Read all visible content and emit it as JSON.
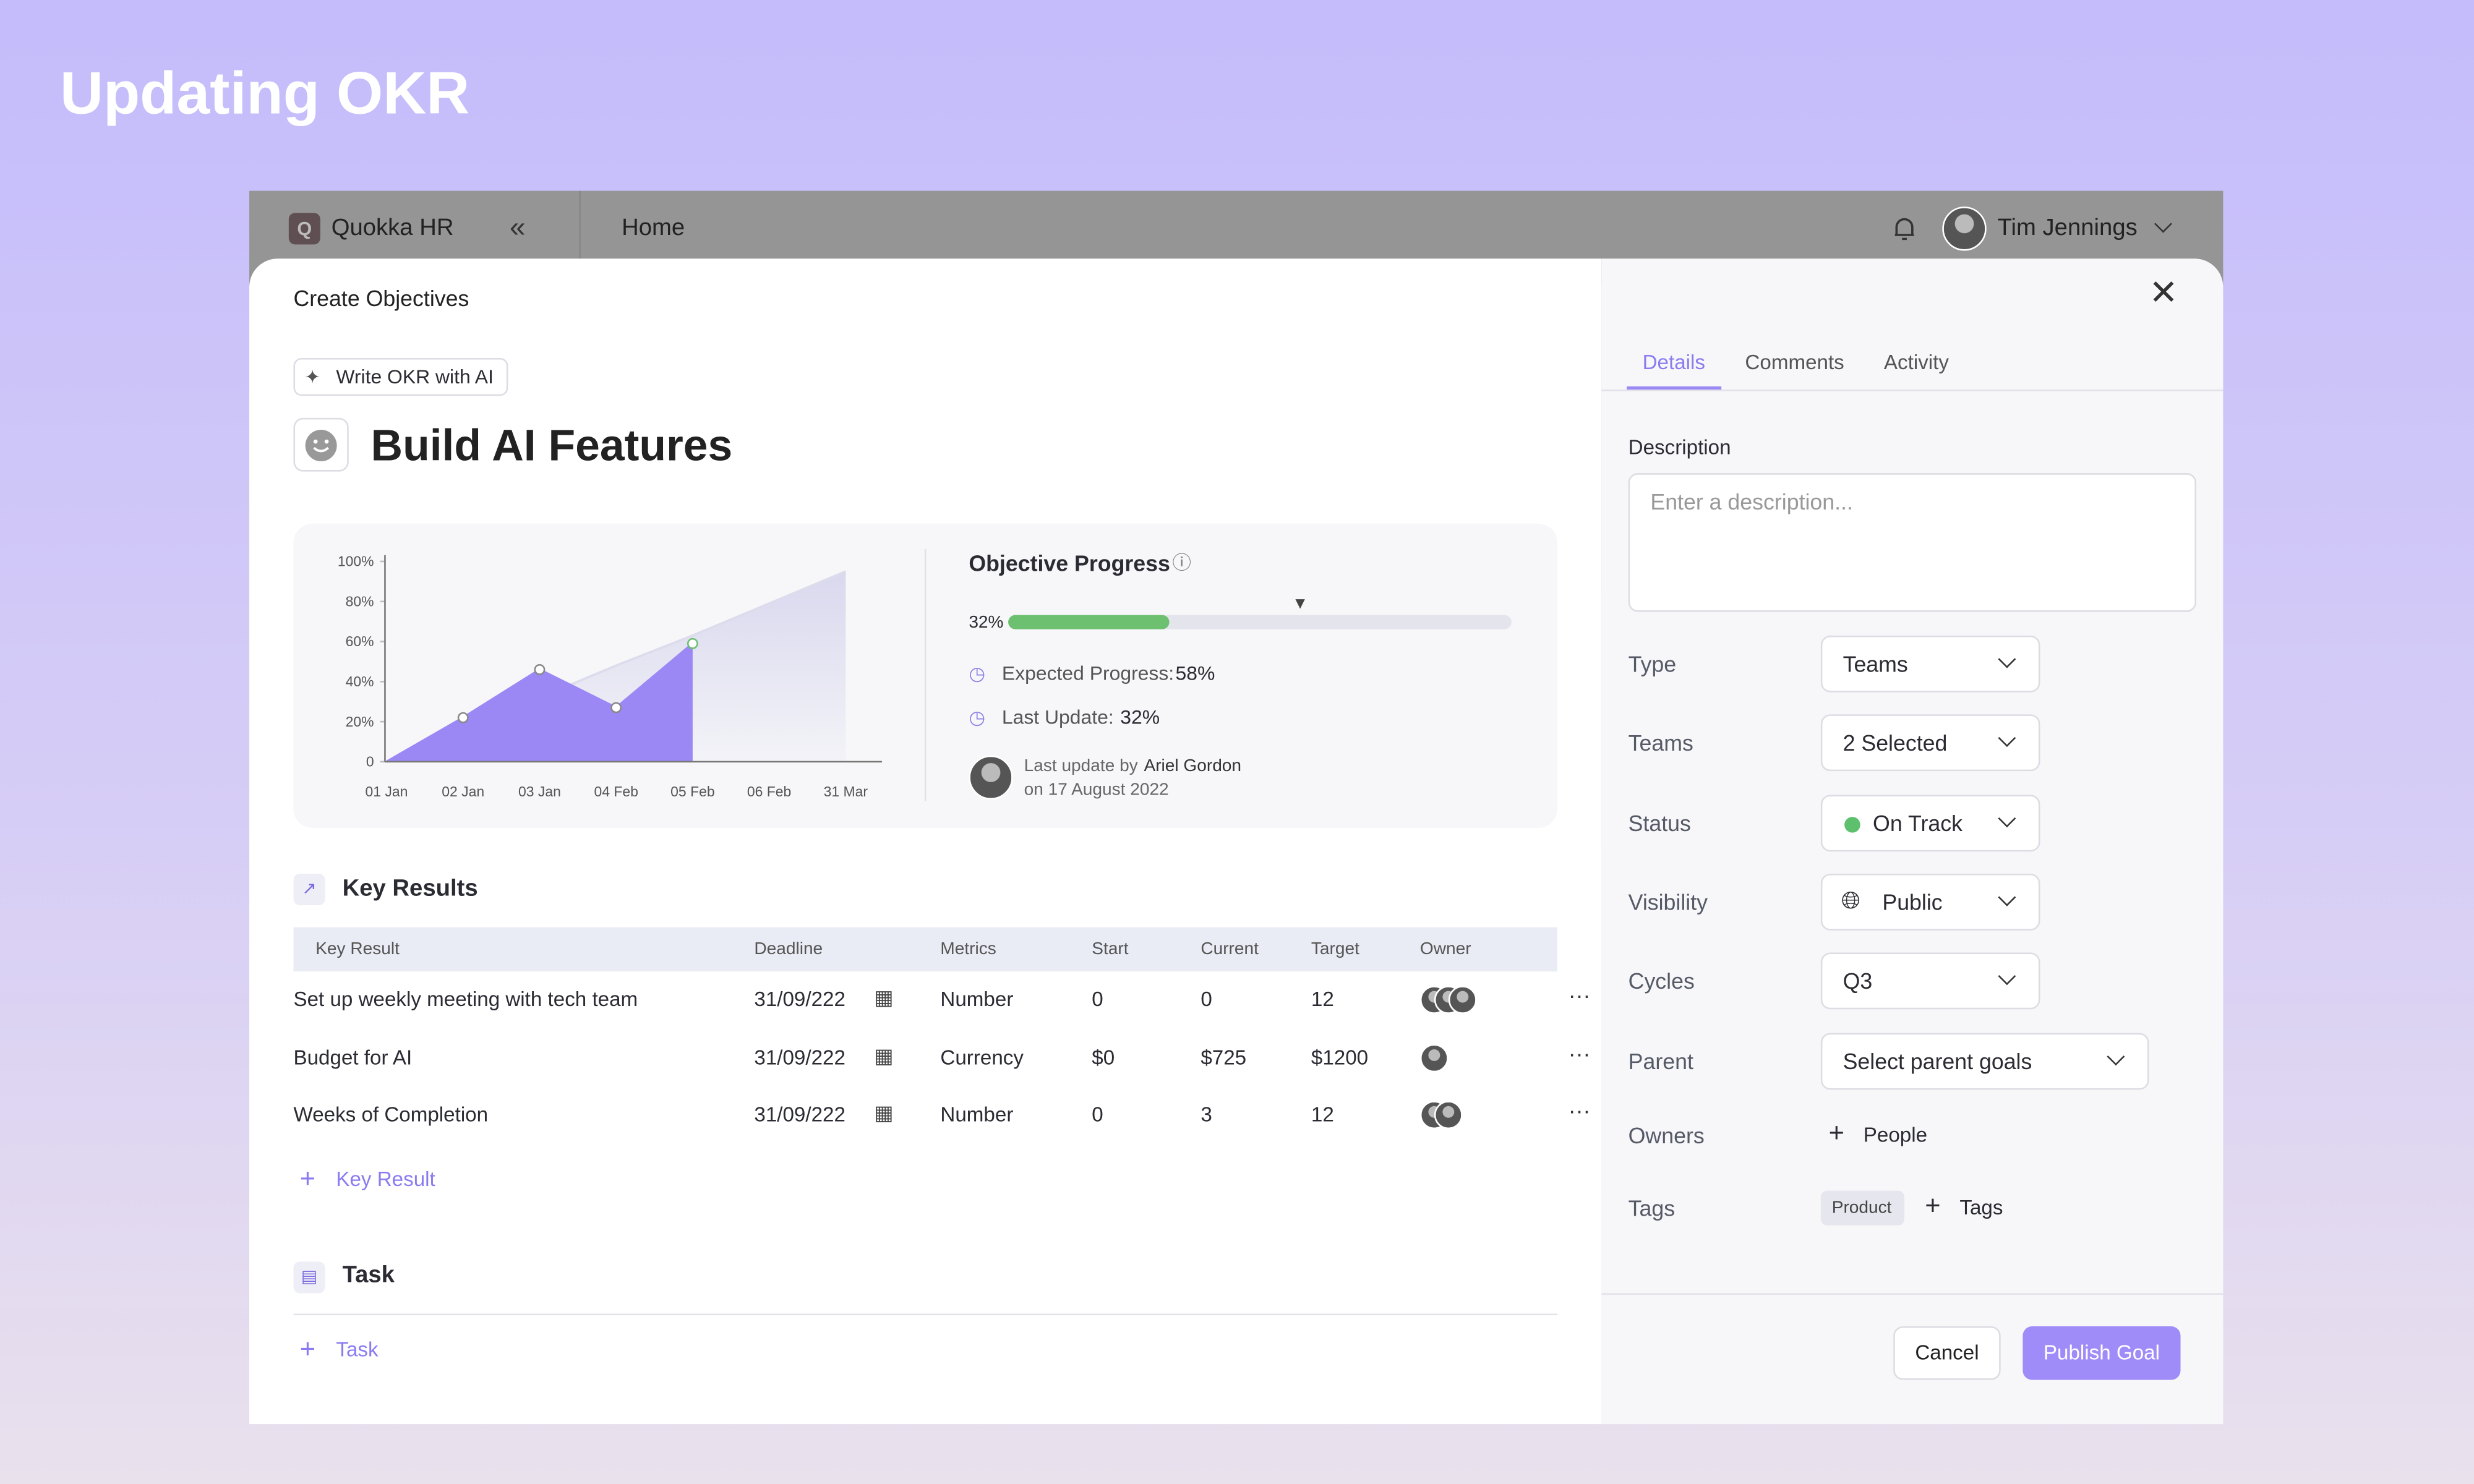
{
  "page_title": "Updating OKR",
  "topbar": {
    "logo": "Q",
    "app": "Quokka HR",
    "nav": "Home",
    "user": "Tim Jennings"
  },
  "modal": {
    "heading": "Create Objectives",
    "ai_button": "Write OKR with AI",
    "objective": "Build AI Features",
    "chart": {
      "type": "area",
      "categories": [
        "01 Jan",
        "02 Jan",
        "03 Jan",
        "04 Feb",
        "05 Feb",
        "06 Feb",
        "31 Mar"
      ],
      "actual": {
        "color": "#9b88f5",
        "values": [
          0,
          22,
          46,
          27,
          59,
          null,
          null
        ]
      },
      "expected": {
        "color": "#dcdcec",
        "values": [
          0,
          16,
          32,
          48,
          63,
          79,
          95
        ]
      },
      "ylim": [
        0,
        100
      ],
      "yticks": [
        0,
        {
          "value": 20,
          "label": "20%"
        },
        {
          "value": 40,
          "label": "40%"
        },
        {
          "value": 60,
          "label": "60%"
        },
        {
          "value": 80,
          "label": "80%"
        },
        {
          "value": 100,
          "label": "100%"
        }
      ]
    },
    "progress": {
      "title": "Objective Progress",
      "value": 32,
      "value_label": "32%",
      "expected_marker": 58,
      "color": "#6cc070",
      "details": [
        {
          "label": "Expected Progress:",
          "value": "58%"
        },
        {
          "label": "Last Update:",
          "value": "32%"
        }
      ],
      "updated_by_prefix": "Last update by",
      "updated_by": "Ariel Gordon",
      "updated_on": "on 17 August 2022"
    },
    "key_results": {
      "title": "Key Results",
      "columns": [
        "Key Result",
        "Deadline",
        "Metrics",
        "Start",
        "Current",
        "Target",
        "Owner"
      ],
      "rows": [
        [
          "Set up weekly meeting with tech team",
          "31/09/222",
          "Number",
          "0",
          "0",
          "12"
        ],
        [
          "Budget for AI",
          "31/09/222",
          "Currency",
          "$0",
          "$725",
          "$1200"
        ],
        [
          "Weeks of Completion",
          "31/09/222",
          "Number",
          "0",
          "3",
          "12"
        ]
      ],
      "add": "Key Result"
    },
    "task": {
      "title": "Task",
      "add": "Task"
    }
  },
  "panel": {
    "tabs": [
      "Details",
      "Comments",
      "Activity"
    ],
    "description_label": "Description",
    "description_placeholder": "Enter a description...",
    "fields": [
      {
        "label": "Type",
        "value": "Teams"
      },
      {
        "label": "Teams",
        "value": "2 Selected"
      },
      {
        "label": "Status",
        "value": "On Track"
      },
      {
        "label": "Visibility",
        "value": "Public"
      },
      {
        "label": "Cycles",
        "value": "Q3"
      },
      {
        "label": "Parent",
        "value": "Select parent goals"
      }
    ],
    "owners": {
      "label": "Owners",
      "add": "People"
    },
    "tags": {
      "label": "Tags",
      "items": [
        "Product"
      ],
      "add": "Tags"
    },
    "cancel": "Cancel",
    "publish": "Publish Goal"
  }
}
